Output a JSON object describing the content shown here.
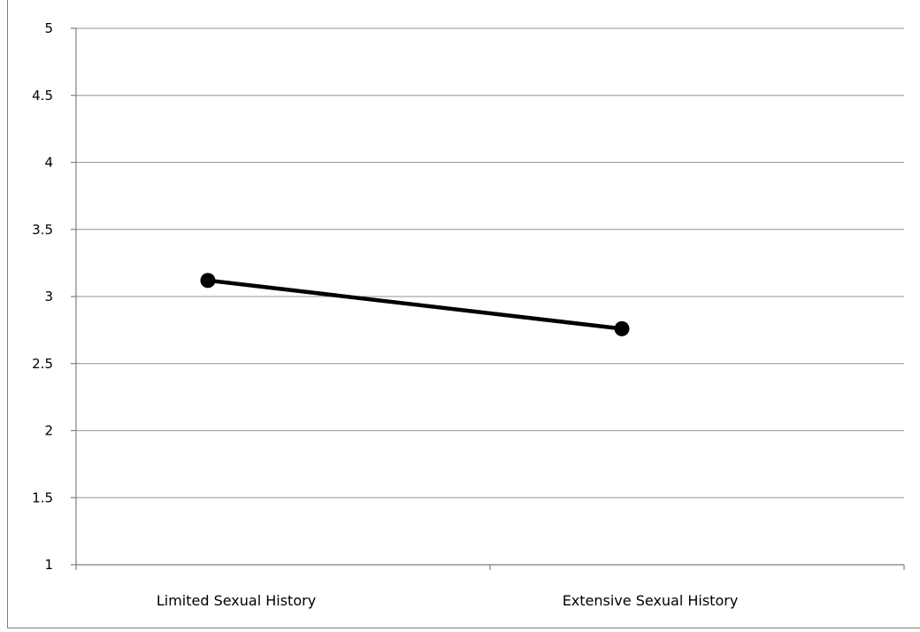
{
  "chart_data": {
    "type": "line",
    "title": "",
    "xlabel": "",
    "ylabel": "",
    "categories": [
      "Limited Sexual History",
      "Extensive Sexual History"
    ],
    "series": [
      {
        "values": [
          3.12,
          2.76
        ]
      }
    ],
    "ylim": [
      1,
      5
    ],
    "yticks": [
      "1",
      "1.5",
      "2",
      "2.5",
      "3",
      "3.5",
      "4",
      "4.5",
      "5"
    ],
    "grid": true,
    "legend": "none",
    "line_color": "#000000",
    "grid_color": "#a6a6a6"
  }
}
